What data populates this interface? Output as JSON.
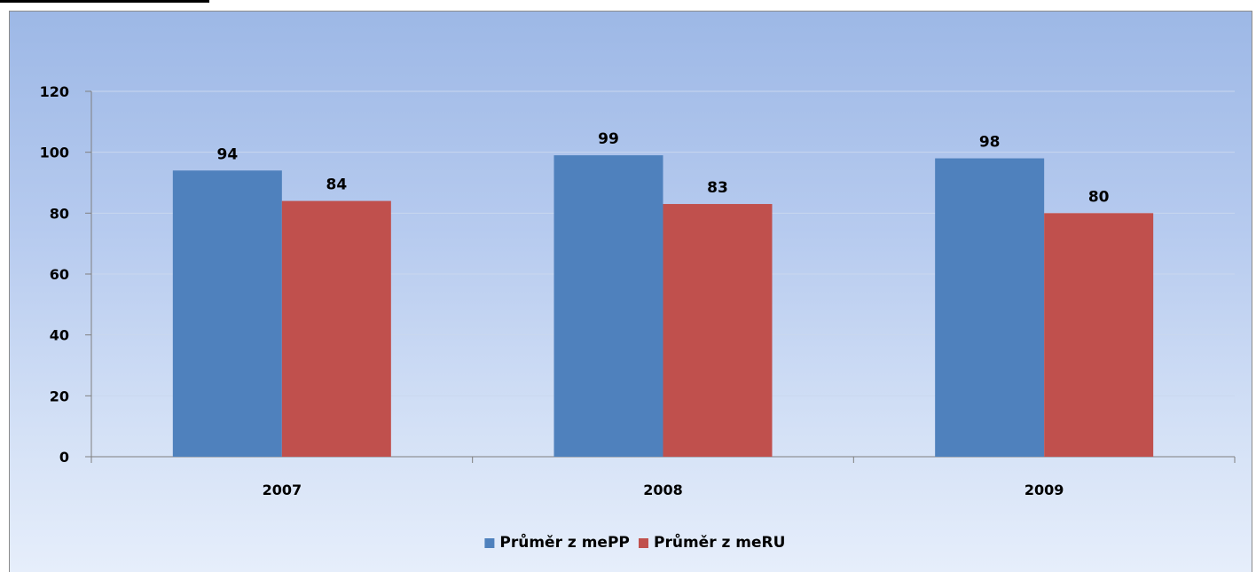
{
  "chart_data": {
    "type": "bar",
    "categories": [
      "2007",
      "2008",
      "2009"
    ],
    "series": [
      {
        "name": "Průměr z mePP",
        "color": "#4f81bd",
        "values": [
          94,
          99,
          98
        ]
      },
      {
        "name": "Průměr z meRU",
        "color": "#c0504d",
        "values": [
          84,
          83,
          80
        ]
      }
    ],
    "ylim": [
      0,
      120
    ],
    "yticks": [
      0,
      20,
      40,
      60,
      80,
      100,
      120
    ],
    "grid": true,
    "legend_position": "bottom",
    "title": "",
    "xlabel": "",
    "ylabel": ""
  }
}
